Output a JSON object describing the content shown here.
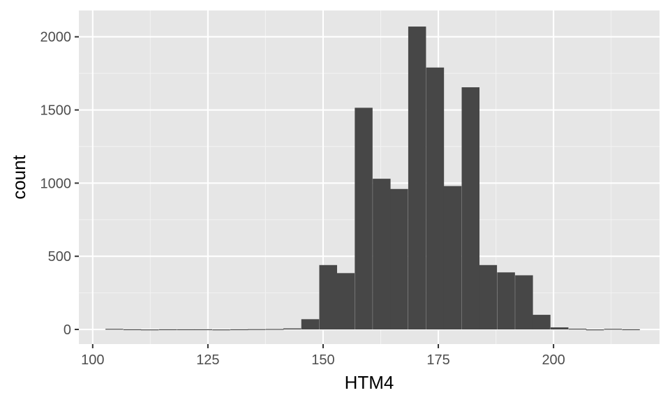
{
  "chart_data": {
    "type": "bar",
    "subtype": "histogram",
    "xlabel": "HTM4",
    "ylabel": "count",
    "xlim": [
      97,
      223
    ],
    "ylim": [
      -100,
      2180
    ],
    "x_ticks": [
      100,
      125,
      150,
      175,
      200
    ],
    "y_ticks": [
      0,
      500,
      1000,
      1500,
      2000
    ],
    "x_tick_labels": [
      "100",
      "125",
      "150",
      "175",
      "200"
    ],
    "y_tick_labels": [
      "0",
      "500",
      "1000",
      "1500",
      "2000"
    ],
    "grid": true,
    "bin_width": 3.86,
    "bin_centers": [
      104.7,
      108.6,
      112.4,
      116.3,
      120.2,
      124.0,
      127.9,
      131.8,
      135.6,
      139.5,
      143.3,
      147.2,
      151.1,
      154.9,
      158.8,
      162.7,
      166.5,
      170.4,
      174.3,
      178.1,
      182.0,
      185.8,
      189.7,
      193.6,
      197.4,
      201.3,
      205.2,
      209.0,
      212.9,
      216.8
    ],
    "values": [
      4,
      1,
      0,
      1,
      1,
      1,
      0,
      1,
      2,
      3,
      7,
      70,
      440,
      385,
      1515,
      1030,
      960,
      2070,
      1790,
      980,
      1655,
      440,
      390,
      370,
      100,
      14,
      5,
      0,
      4,
      1
    ],
    "colors": {
      "bar": "#474747",
      "panel": "#e6e6e6",
      "grid": "#ffffff"
    }
  }
}
